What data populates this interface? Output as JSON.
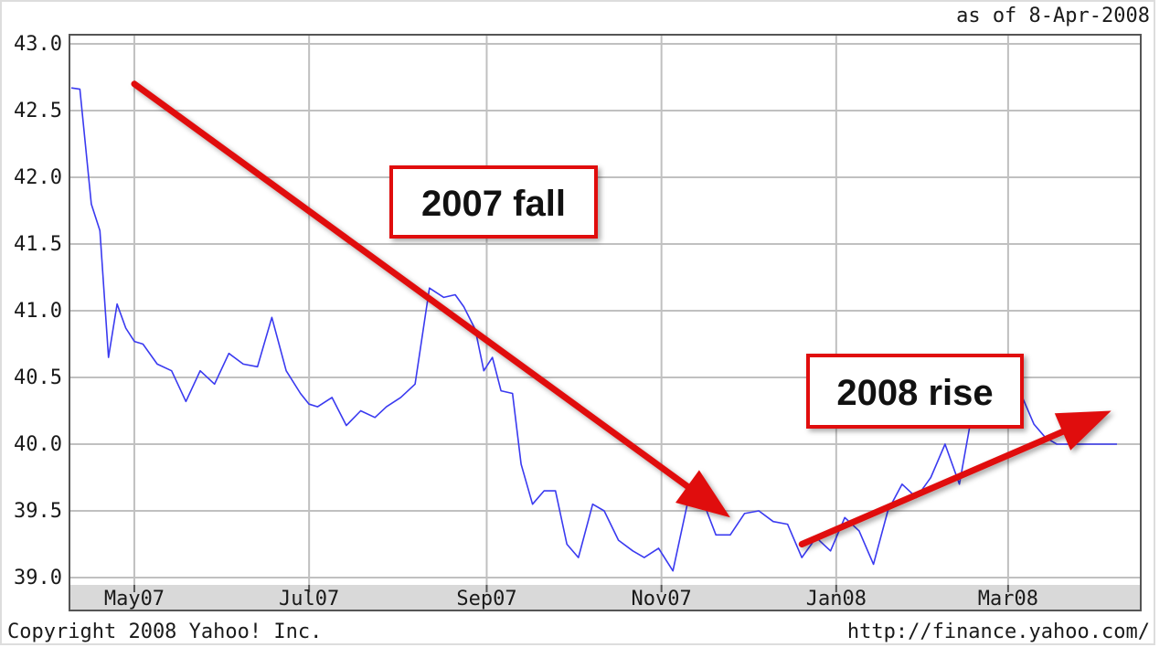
{
  "header": {
    "as_of": "as of  8-Apr-2008"
  },
  "footer": {
    "copyright": "Copyright 2008 Yahoo! Inc.",
    "url": "http://finance.yahoo.com/"
  },
  "colors": {
    "series": "#3a3af0",
    "grid": "#c0c0c0",
    "frame": "#555555",
    "annotation": "#e01010",
    "axis_band": "#d9d9d9"
  },
  "chart_data": {
    "type": "line",
    "title": "",
    "xlabel": "",
    "ylabel": "",
    "grid": true,
    "ylim": [
      39.0,
      43.0
    ],
    "xlim": [
      "2007-04-09",
      "2008-04-08"
    ],
    "y_ticks": [
      "39.0",
      "39.5",
      "40.0",
      "40.5",
      "41.0",
      "41.5",
      "42.0",
      "42.5",
      "43.0"
    ],
    "x_ticks": [
      {
        "date": "2007-05-01",
        "label": "May07"
      },
      {
        "date": "2007-07-01",
        "label": "Jul07"
      },
      {
        "date": "2007-09-01",
        "label": "Sep07"
      },
      {
        "date": "2007-11-01",
        "label": "Nov07"
      },
      {
        "date": "2008-01-01",
        "label": "Jan08"
      },
      {
        "date": "2008-03-01",
        "label": "Mar08"
      }
    ],
    "series": [
      {
        "x": [
          "2007-04-09",
          "2007-04-12",
          "2007-04-16",
          "2007-04-19",
          "2007-04-22",
          "2007-04-25",
          "2007-04-28",
          "2007-05-01",
          "2007-05-04",
          "2007-05-09",
          "2007-05-14",
          "2007-05-19",
          "2007-05-24",
          "2007-05-29",
          "2007-06-03",
          "2007-06-08",
          "2007-06-13",
          "2007-06-18",
          "2007-06-23",
          "2007-06-28",
          "2007-07-01",
          "2007-07-04",
          "2007-07-09",
          "2007-07-14",
          "2007-07-19",
          "2007-07-24",
          "2007-07-28",
          "2007-08-02",
          "2007-08-07",
          "2007-08-12",
          "2007-08-17",
          "2007-08-21",
          "2007-08-24",
          "2007-08-28",
          "2007-08-31",
          "2007-09-03",
          "2007-09-06",
          "2007-09-10",
          "2007-09-13",
          "2007-09-17",
          "2007-09-21",
          "2007-09-25",
          "2007-09-29",
          "2007-10-03",
          "2007-10-08",
          "2007-10-12",
          "2007-10-17",
          "2007-10-22",
          "2007-10-26",
          "2007-10-31",
          "2007-11-05",
          "2007-11-10",
          "2007-11-15",
          "2007-11-20",
          "2007-11-25",
          "2007-11-30",
          "2007-12-05",
          "2007-12-10",
          "2007-12-15",
          "2007-12-20",
          "2007-12-25",
          "2007-12-30",
          "2008-01-04",
          "2008-01-09",
          "2008-01-14",
          "2008-01-19",
          "2008-01-24",
          "2008-01-29",
          "2008-02-03",
          "2008-02-08",
          "2008-02-13",
          "2008-02-18",
          "2008-02-23",
          "2008-02-28",
          "2008-03-02",
          "2008-03-06",
          "2008-03-10",
          "2008-03-14",
          "2008-03-18",
          "2008-03-22",
          "2008-03-26",
          "2008-03-30",
          "2008-04-03",
          "2008-04-08"
        ],
        "values": [
          42.67,
          42.66,
          41.8,
          41.6,
          40.65,
          41.05,
          40.87,
          40.77,
          40.75,
          40.6,
          40.55,
          40.32,
          40.55,
          40.45,
          40.68,
          40.6,
          40.58,
          40.95,
          40.55,
          40.38,
          40.3,
          40.28,
          40.35,
          40.14,
          40.25,
          40.2,
          40.28,
          40.35,
          40.45,
          41.17,
          41.1,
          41.12,
          41.03,
          40.86,
          40.55,
          40.65,
          40.4,
          40.38,
          39.85,
          39.55,
          39.65,
          39.65,
          39.25,
          39.15,
          39.55,
          39.5,
          39.28,
          39.2,
          39.15,
          39.22,
          39.05,
          39.55,
          39.6,
          39.32,
          39.32,
          39.48,
          39.5,
          39.42,
          39.4,
          39.15,
          39.3,
          39.2,
          39.45,
          39.35,
          39.1,
          39.5,
          39.7,
          39.6,
          39.75,
          40.0,
          39.7,
          40.3,
          40.18,
          40.2,
          40.15,
          40.35,
          40.15,
          40.05,
          40.0,
          40.0,
          40.0,
          40.0,
          40.0,
          40.0
        ]
      }
    ],
    "annotations": [
      {
        "text": "2007 fall",
        "from": [
          "2007-05-01",
          42.7
        ],
        "to": [
          "2007-11-25",
          39.45
        ]
      },
      {
        "text": "2008 rise",
        "from": [
          "2007-12-20",
          39.25
        ],
        "to": [
          "2008-04-06",
          40.25
        ]
      }
    ]
  }
}
